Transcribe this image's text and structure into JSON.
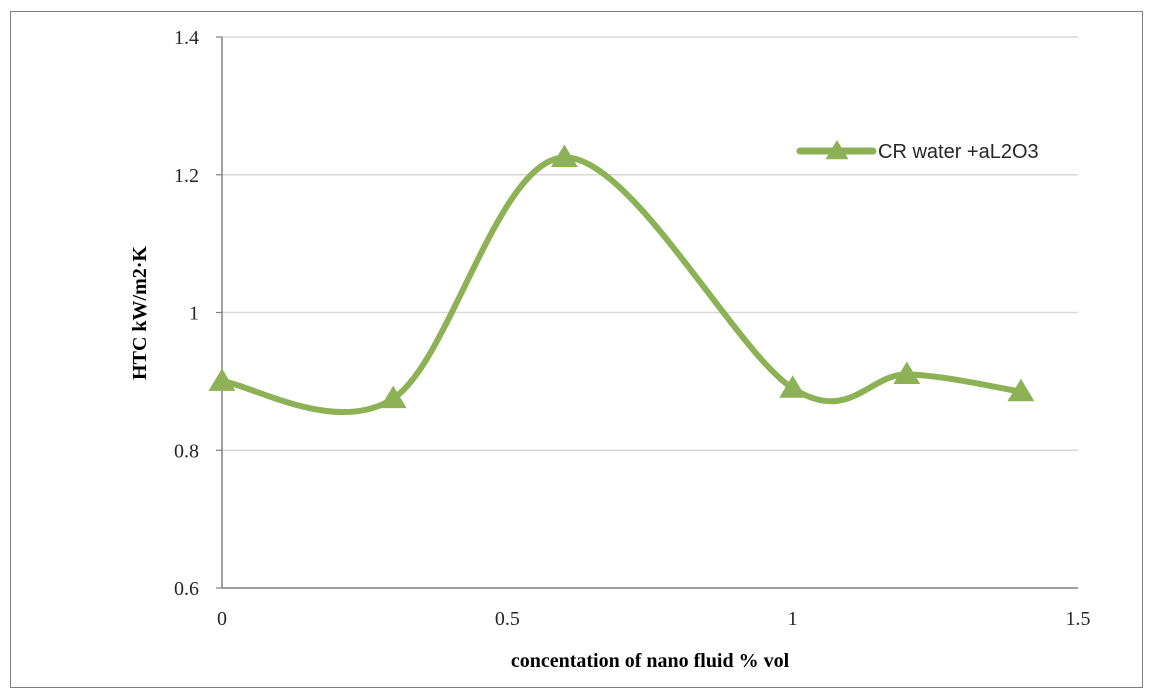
{
  "chart_data": {
    "type": "line",
    "title": "",
    "xlabel": "concentation of nano fluid  % vol",
    "ylabel": "HTC kW/m2·K",
    "xlim": [
      0,
      1.5
    ],
    "ylim": [
      0.6,
      1.4
    ],
    "x_ticks": [
      0,
      0.5,
      1,
      1.5
    ],
    "x_tick_labels": [
      "0",
      "0.5",
      "1",
      "1.5"
    ],
    "y_ticks": [
      0.6,
      0.8,
      1,
      1.2,
      1.4
    ],
    "y_tick_labels": [
      "0.6",
      "0.8",
      "1",
      "1.2",
      "1.4"
    ],
    "grid": "horizontal",
    "smoothed": true,
    "legend_position": "top-right",
    "series": [
      {
        "name": "CR water +aL2O3",
        "color": "#8db255",
        "marker": "triangle",
        "x": [
          0,
          0.3,
          0.6,
          1.0,
          1.2,
          1.4
        ],
        "y": [
          0.9,
          0.875,
          1.225,
          0.89,
          0.91,
          0.885
        ]
      }
    ]
  }
}
